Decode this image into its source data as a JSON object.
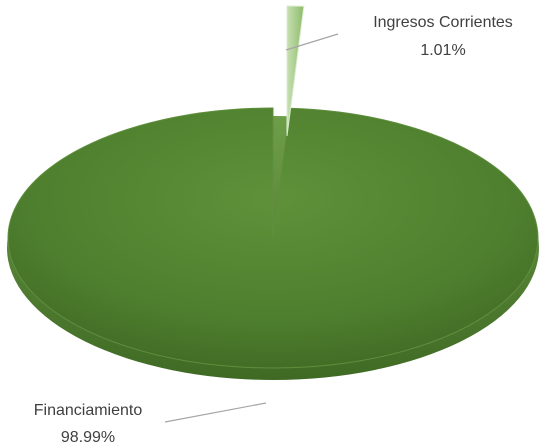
{
  "chart_data": {
    "type": "pie",
    "title": "",
    "slices": [
      {
        "name": "Ingresos Corrientes",
        "percent_label": "1.01%",
        "value": 1.01,
        "color": "#a9d08e"
      },
      {
        "name": "Financiamiento",
        "percent_label": "98.99%",
        "value": 98.99,
        "color": "#548235"
      }
    ],
    "exploded_slice": "Ingresos Corrientes",
    "legend": "none",
    "data_labels": "outside with leader lines"
  }
}
